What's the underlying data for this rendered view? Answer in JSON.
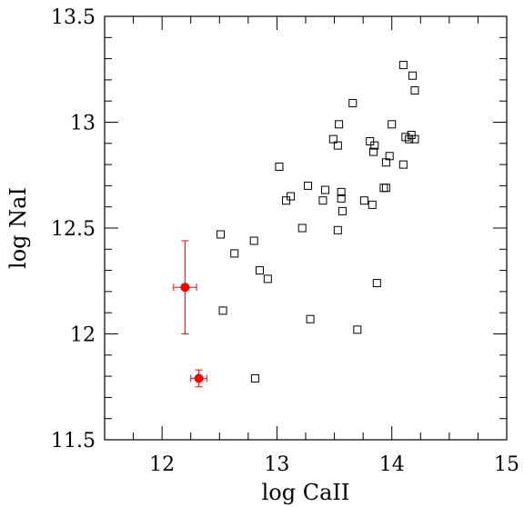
{
  "chart_data": {
    "type": "scatter",
    "xlabel": "log  CaII",
    "ylabel": "log  NaI",
    "xlim": [
      11.5,
      15
    ],
    "ylim": [
      11.5,
      13.5
    ],
    "grid": false,
    "x_ticks": [
      {
        "value": 12,
        "label": "12"
      },
      {
        "value": 13,
        "label": "13"
      },
      {
        "value": 14,
        "label": "14"
      },
      {
        "value": 15,
        "label": "15"
      }
    ],
    "y_ticks": [
      {
        "value": 11.5,
        "label": "11.5"
      },
      {
        "value": 12,
        "label": "12"
      },
      {
        "value": 12.5,
        "label": "12.5"
      },
      {
        "value": 13,
        "label": "13"
      },
      {
        "value": 13.5,
        "label": "13.5"
      }
    ],
    "series": [
      {
        "marker": "open-square",
        "color": "#000000",
        "points": [
          {
            "x": 12.51,
            "y": 12.47
          },
          {
            "x": 12.53,
            "y": 12.11
          },
          {
            "x": 12.63,
            "y": 12.38
          },
          {
            "x": 12.8,
            "y": 12.44
          },
          {
            "x": 12.81,
            "y": 11.79
          },
          {
            "x": 12.85,
            "y": 12.3
          },
          {
            "x": 12.92,
            "y": 12.26
          },
          {
            "x": 13.02,
            "y": 12.79
          },
          {
            "x": 13.08,
            "y": 12.63
          },
          {
            "x": 13.12,
            "y": 12.65
          },
          {
            "x": 13.22,
            "y": 12.5
          },
          {
            "x": 13.27,
            "y": 12.7
          },
          {
            "x": 13.29,
            "y": 12.07
          },
          {
            "x": 13.4,
            "y": 12.63
          },
          {
            "x": 13.42,
            "y": 12.68
          },
          {
            "x": 13.49,
            "y": 12.92
          },
          {
            "x": 13.53,
            "y": 12.89
          },
          {
            "x": 13.54,
            "y": 12.99
          },
          {
            "x": 13.53,
            "y": 12.49
          },
          {
            "x": 13.56,
            "y": 12.67
          },
          {
            "x": 13.56,
            "y": 12.64
          },
          {
            "x": 13.57,
            "y": 12.58
          },
          {
            "x": 13.66,
            "y": 13.09
          },
          {
            "x": 13.7,
            "y": 12.02
          },
          {
            "x": 13.76,
            "y": 12.63
          },
          {
            "x": 13.81,
            "y": 12.91
          },
          {
            "x": 13.83,
            "y": 12.61
          },
          {
            "x": 13.84,
            "y": 12.86
          },
          {
            "x": 13.85,
            "y": 12.89
          },
          {
            "x": 13.87,
            "y": 12.24
          },
          {
            "x": 13.93,
            "y": 12.69
          },
          {
            "x": 13.95,
            "y": 12.69
          },
          {
            "x": 13.95,
            "y": 12.81
          },
          {
            "x": 13.98,
            "y": 12.84
          },
          {
            "x": 14.0,
            "y": 12.99
          },
          {
            "x": 14.1,
            "y": 12.8
          },
          {
            "x": 14.1,
            "y": 13.27
          },
          {
            "x": 14.12,
            "y": 12.93
          },
          {
            "x": 14.15,
            "y": 12.92
          },
          {
            "x": 14.17,
            "y": 12.94
          },
          {
            "x": 14.18,
            "y": 13.22
          },
          {
            "x": 14.2,
            "y": 13.15
          },
          {
            "x": 14.2,
            "y": 12.92
          }
        ]
      },
      {
        "marker": "filled-circle-errorbars",
        "color": "#ff0000",
        "points": [
          {
            "x": 12.2,
            "y": 12.22,
            "xerr": 0.1,
            "yerr": 0.22
          },
          {
            "x": 12.32,
            "y": 11.79,
            "xerr": 0.07,
            "yerr": 0.04
          }
        ]
      }
    ]
  }
}
